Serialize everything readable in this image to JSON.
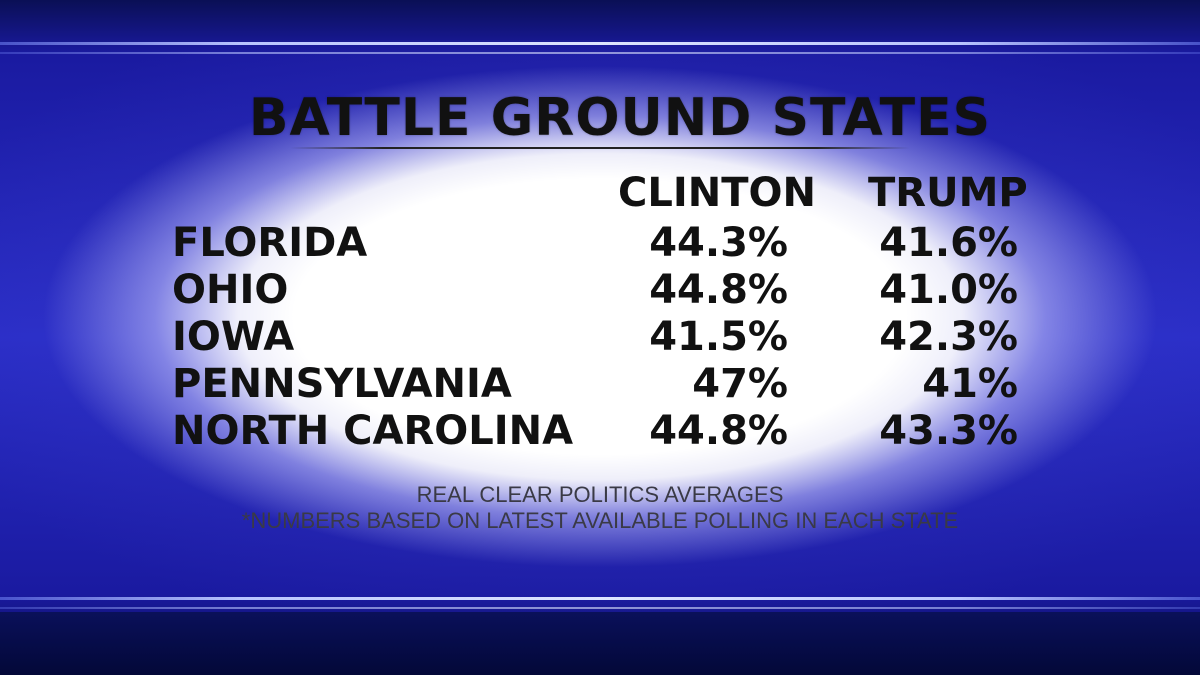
{
  "chart_data": {
    "type": "table",
    "title": "BATTLE GROUND STATES",
    "columns": [
      "CLINTON",
      "TRUMP"
    ],
    "rows": [
      {
        "state": "FLORIDA",
        "clinton": "44.3%",
        "trump": "41.6%"
      },
      {
        "state": "OHIO",
        "clinton": "44.8%",
        "trump": "41.0%"
      },
      {
        "state": "IOWA",
        "clinton": "41.5%",
        "trump": "42.3%"
      },
      {
        "state": "PENNSYLVANIA",
        "clinton": "47%",
        "trump": "41%"
      },
      {
        "state": "NORTH CAROLINA",
        "clinton": "44.8%",
        "trump": "43.3%"
      }
    ],
    "source": "REAL CLEAR POLITICS AVERAGES",
    "note": "*NUMBERS BASED ON LATEST AVAILABLE POLLING IN EACH STATE"
  },
  "colors": {
    "background": "#2a2ec8",
    "text": "#111111",
    "footnote": "#3a3a46"
  }
}
